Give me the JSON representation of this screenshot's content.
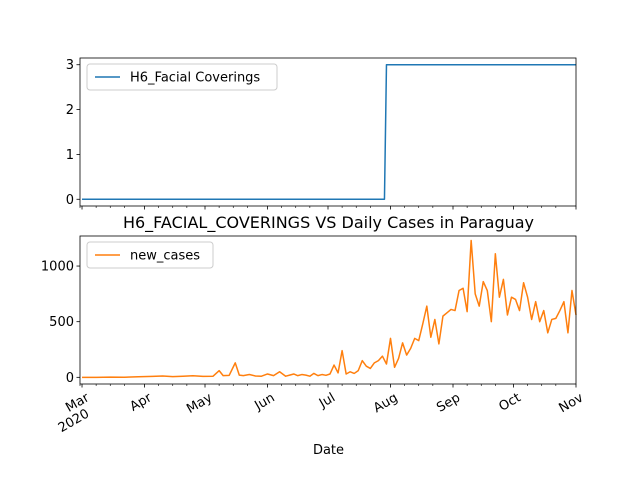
{
  "chart_data": [
    {
      "type": "line",
      "title": "",
      "xlabel": "",
      "ylabel": "",
      "ylim": [
        -0.15,
        3.15
      ],
      "yticks": [
        0,
        1,
        2,
        3
      ],
      "legend": {
        "placement": "top-left"
      },
      "grid": false,
      "series": [
        {
          "name": "H6_Facial Coverings",
          "color": "#1f77b4",
          "x": [
            "2020-03-01",
            "2020-07-29",
            "2020-07-30",
            "2020-11-01"
          ],
          "y": [
            0,
            0,
            3,
            3
          ]
        }
      ]
    },
    {
      "type": "line",
      "title": "H6_FACIAL_COVERINGS VS Daily Cases in Paraguay",
      "xlabel": "Date",
      "ylabel": "",
      "ylim": [
        -60,
        1270
      ],
      "yticks": [
        0,
        500,
        1000
      ],
      "legend": {
        "placement": "top-left"
      },
      "grid": false,
      "x_tick_labels": [
        {
          "date": "2020-03-01",
          "label": "Mar",
          "sublabel": "2020"
        },
        {
          "date": "2020-04-01",
          "label": "Apr"
        },
        {
          "date": "2020-05-01",
          "label": "May"
        },
        {
          "date": "2020-06-01",
          "label": "Jun"
        },
        {
          "date": "2020-07-01",
          "label": "Jul"
        },
        {
          "date": "2020-08-01",
          "label": "Aug"
        },
        {
          "date": "2020-09-01",
          "label": "Sep"
        },
        {
          "date": "2020-10-01",
          "label": "Oct"
        },
        {
          "date": "2020-11-01",
          "label": "Nov"
        }
      ],
      "series": [
        {
          "name": "new_cases",
          "color": "#ff7f0e",
          "x": [
            "2020-03-01",
            "2020-03-08",
            "2020-03-15",
            "2020-03-22",
            "2020-03-29",
            "2020-04-05",
            "2020-04-10",
            "2020-04-15",
            "2020-04-20",
            "2020-04-25",
            "2020-04-30",
            "2020-05-05",
            "2020-05-08",
            "2020-05-10",
            "2020-05-13",
            "2020-05-16",
            "2020-05-18",
            "2020-05-20",
            "2020-05-23",
            "2020-05-26",
            "2020-05-29",
            "2020-06-01",
            "2020-06-04",
            "2020-06-07",
            "2020-06-10",
            "2020-06-12",
            "2020-06-14",
            "2020-06-16",
            "2020-06-18",
            "2020-06-20",
            "2020-06-22",
            "2020-06-24",
            "2020-06-26",
            "2020-06-28",
            "2020-06-30",
            "2020-07-02",
            "2020-07-04",
            "2020-07-06",
            "2020-07-08",
            "2020-07-10",
            "2020-07-12",
            "2020-07-14",
            "2020-07-16",
            "2020-07-18",
            "2020-07-20",
            "2020-07-22",
            "2020-07-24",
            "2020-07-26",
            "2020-07-28",
            "2020-07-30",
            "2020-08-01",
            "2020-08-03",
            "2020-08-05",
            "2020-08-07",
            "2020-08-09",
            "2020-08-11",
            "2020-08-13",
            "2020-08-15",
            "2020-08-17",
            "2020-08-19",
            "2020-08-21",
            "2020-08-23",
            "2020-08-25",
            "2020-08-27",
            "2020-08-29",
            "2020-08-31",
            "2020-09-02",
            "2020-09-04",
            "2020-09-06",
            "2020-09-08",
            "2020-09-10",
            "2020-09-12",
            "2020-09-14",
            "2020-09-16",
            "2020-09-18",
            "2020-09-20",
            "2020-09-22",
            "2020-09-24",
            "2020-09-26",
            "2020-09-28",
            "2020-09-30",
            "2020-10-02",
            "2020-10-04",
            "2020-10-06",
            "2020-10-08",
            "2020-10-10",
            "2020-10-12",
            "2020-10-14",
            "2020-10-16",
            "2020-10-18",
            "2020-10-20",
            "2020-10-22",
            "2020-10-24",
            "2020-10-26",
            "2020-10-28",
            "2020-10-30",
            "2020-11-01"
          ],
          "y": [
            0,
            0,
            2,
            1,
            5,
            8,
            12,
            6,
            10,
            14,
            8,
            10,
            60,
            15,
            18,
            130,
            20,
            15,
            25,
            12,
            10,
            30,
            15,
            50,
            10,
            20,
            30,
            15,
            25,
            20,
            10,
            35,
            15,
            25,
            18,
            30,
            110,
            40,
            240,
            30,
            50,
            35,
            60,
            150,
            100,
            80,
            130,
            150,
            190,
            120,
            350,
            90,
            170,
            310,
            200,
            260,
            350,
            330,
            480,
            640,
            360,
            520,
            300,
            550,
            580,
            610,
            600,
            780,
            800,
            590,
            1230,
            750,
            640,
            860,
            780,
            500,
            1110,
            720,
            880,
            560,
            720,
            700,
            600,
            850,
            720,
            520,
            680,
            500,
            600,
            400,
            520,
            530,
            600,
            680,
            400,
            780,
            560
          ],
          "note_values": null
        }
      ]
    }
  ]
}
